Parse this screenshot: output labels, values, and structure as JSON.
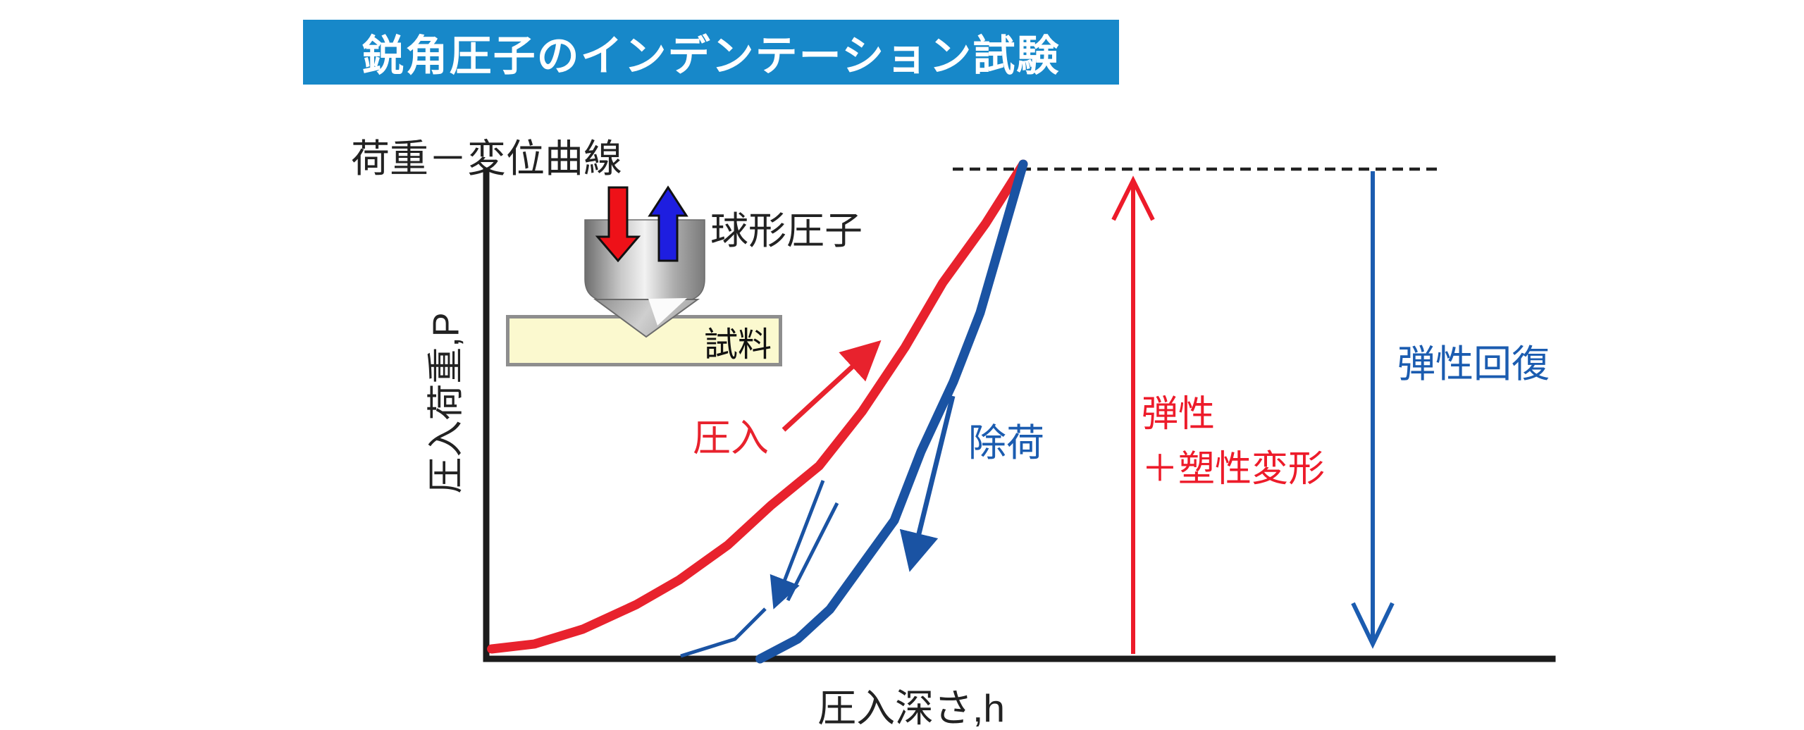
{
  "title": "鋭角圧子のインデンテーション試験",
  "subtitle": "荷重－変位曲線",
  "axes": {
    "y_label": "圧入荷重,P",
    "x_label": "圧入深さ,h"
  },
  "indenter": {
    "label": "球形圧子",
    "sample_label": "試料",
    "press_arrow_color": "#ee1118",
    "withdraw_arrow_color": "#1e1ee0"
  },
  "annotations": {
    "loading": "圧入",
    "unloading": "除荷",
    "elastic_plastic_line1": "弾性",
    "elastic_plastic_line2": "＋塑性変形",
    "elastic_recovery": "弾性回復"
  },
  "colors": {
    "banner_bg": "#1788c9",
    "banner_text": "#ffffff",
    "loading_curve": "#e8222d",
    "unloading_curve": "#1a53a3",
    "annotation_blue": "#1b5cb0",
    "axis": "#1c1c1c",
    "sample_fill": "#fbf9cf",
    "sample_border": "#8e8e8e"
  },
  "chart_data": {
    "type": "line",
    "title": "荷重－変位曲線",
    "xlabel": "圧入深さ,h",
    "ylabel": "圧入荷重,P",
    "axis_numeric": false,
    "grid": false,
    "note": "schematic load-displacement curve of indentation test; coordinates normalized 0-1, max load marked by dashed line",
    "series": [
      {
        "name": "loading",
        "label": "圧入",
        "color": "#e8222d",
        "points": [
          [
            0.01,
            0.02
          ],
          [
            0.09,
            0.03
          ],
          [
            0.18,
            0.06
          ],
          [
            0.28,
            0.11
          ],
          [
            0.36,
            0.16
          ],
          [
            0.45,
            0.23
          ],
          [
            0.53,
            0.31
          ],
          [
            0.62,
            0.39
          ],
          [
            0.7,
            0.5
          ],
          [
            0.78,
            0.63
          ],
          [
            0.85,
            0.76
          ],
          [
            0.93,
            0.88
          ],
          [
            1.0,
            1.0
          ]
        ]
      },
      {
        "name": "unloading",
        "label": "除荷",
        "color": "#1a53a3",
        "points": [
          [
            1.0,
            1.0
          ],
          [
            0.96,
            0.85
          ],
          [
            0.92,
            0.7
          ],
          [
            0.87,
            0.56
          ],
          [
            0.81,
            0.42
          ],
          [
            0.76,
            0.28
          ],
          [
            0.7,
            0.19
          ],
          [
            0.64,
            0.1
          ],
          [
            0.58,
            0.04
          ],
          [
            0.51,
            0.0
          ]
        ]
      }
    ],
    "markers": {
      "max_load_dashed_line": true,
      "elastic_plastic_arrow_label": "弾性＋塑性変形",
      "elastic_recovery_arrow_label": "弾性回復",
      "residual_depth_fraction": 0.51
    }
  }
}
